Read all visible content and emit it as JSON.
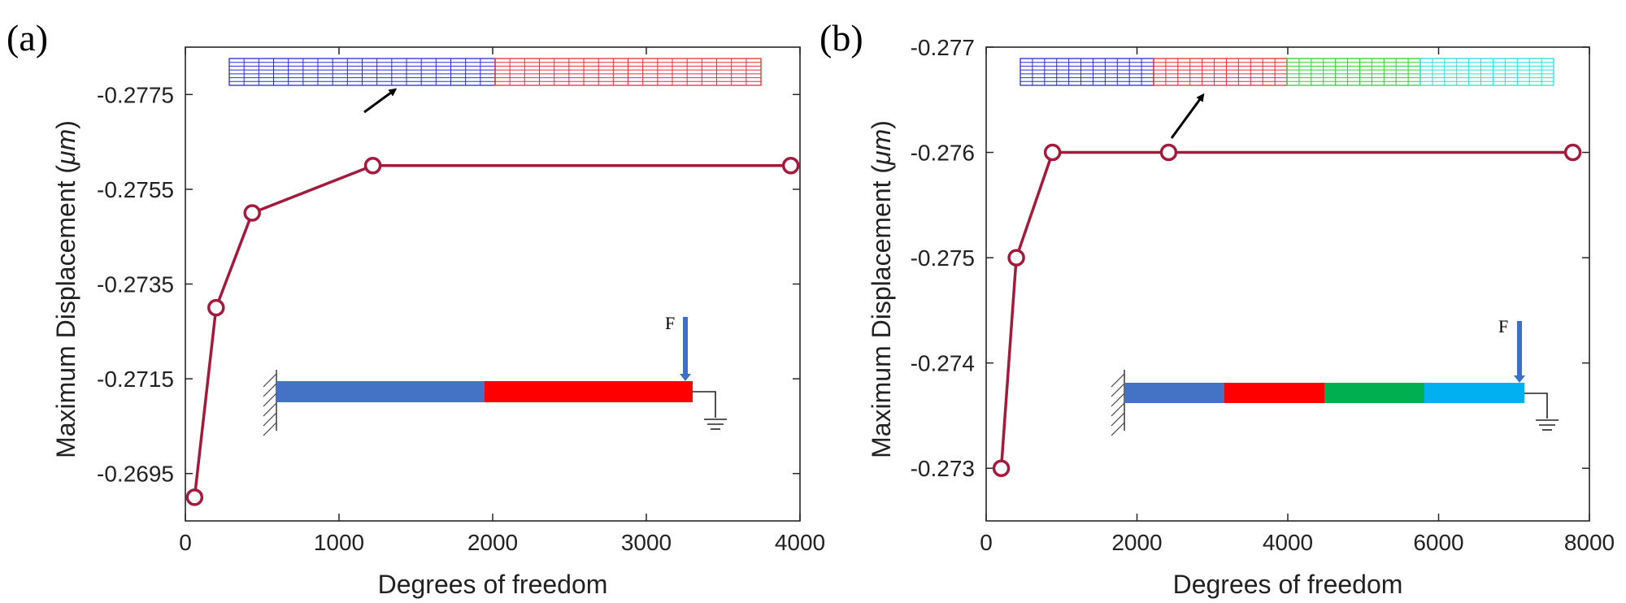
{
  "chart_data": [
    {
      "type": "line",
      "panel_label": "(a)",
      "xlabel": "Degrees of freedom",
      "ylabel_main": "Maximum Displacement (",
      "ylabel_unit": "μm",
      "ylabel_close": ")",
      "xlim": [
        0,
        4000
      ],
      "ylim": [
        -0.2685,
        -0.2785
      ],
      "x_ticks": [
        0,
        1000,
        2000,
        3000,
        4000
      ],
      "y_ticks": [
        -0.2695,
        -0.2715,
        -0.2735,
        -0.2755,
        -0.2775
      ],
      "series": [
        {
          "name": "max displacement",
          "color": "#a21a3c",
          "x": [
            60,
            200,
            435,
            1220,
            3940
          ],
          "y": [
            -0.269,
            -0.273,
            -0.275,
            -0.276,
            -0.276
          ]
        }
      ],
      "inset_mesh_colors": [
        "#2b2bd6",
        "#ea2e2e"
      ],
      "inset_beam_colors": [
        "#4472c4",
        "#ff0000"
      ],
      "force_label": "F"
    },
    {
      "type": "line",
      "panel_label": "(b)",
      "xlabel": "Degrees of freedom",
      "ylabel_main": "Maximum Displacement (",
      "ylabel_unit": "μm",
      "ylabel_close": ")",
      "xlim": [
        0,
        8000
      ],
      "ylim": [
        -0.2725,
        -0.277
      ],
      "x_ticks": [
        0,
        2000,
        4000,
        6000,
        8000
      ],
      "y_ticks": [
        -0.273,
        -0.274,
        -0.275,
        -0.276,
        -0.277
      ],
      "series": [
        {
          "name": "max displacement",
          "color": "#a21a3c",
          "x": [
            200,
            400,
            880,
            2420,
            7780
          ],
          "y": [
            -0.273,
            -0.275,
            -0.276,
            -0.276,
            -0.276
          ]
        }
      ],
      "inset_mesh_colors": [
        "#2b2bd6",
        "#ea2e2e",
        "#2fcf2f",
        "#27dede"
      ],
      "inset_beam_colors": [
        "#4472c4",
        "#ff0000",
        "#00b050",
        "#00b0f0"
      ],
      "force_label": "F"
    }
  ]
}
